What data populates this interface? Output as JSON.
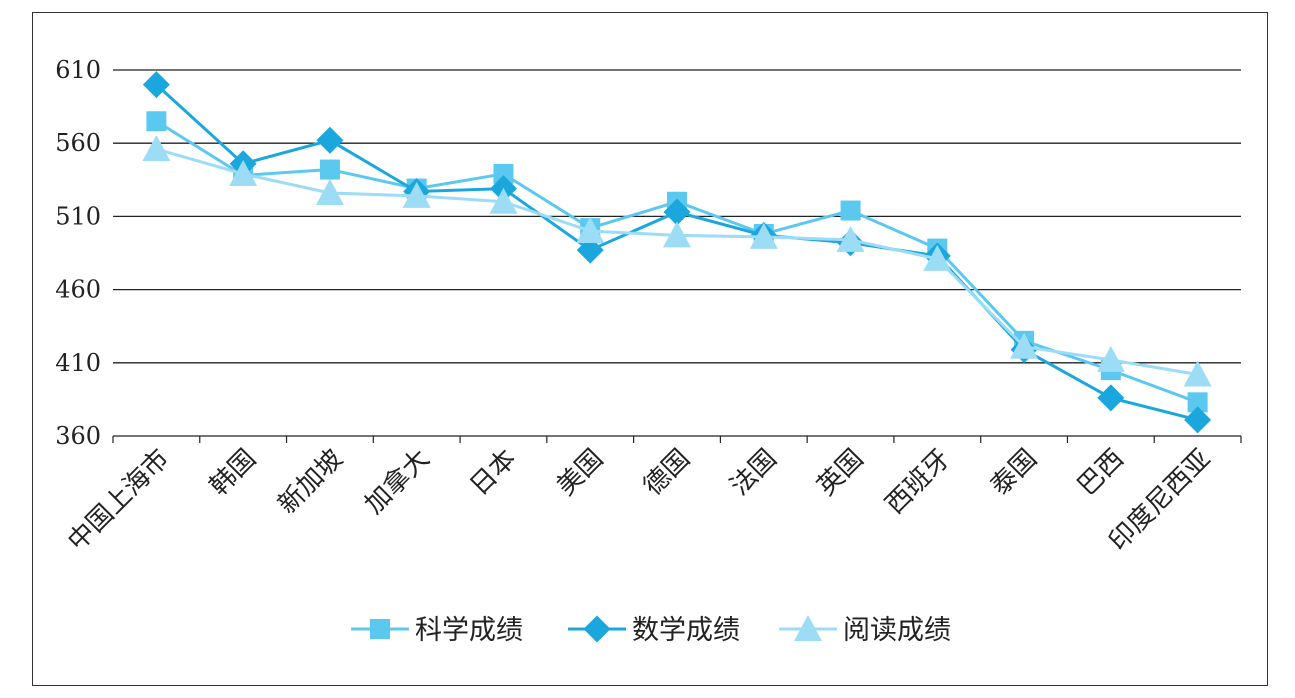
{
  "chart_data": {
    "type": "line",
    "categories": [
      "中国上海市",
      "韩国",
      "新加坡",
      "加拿大",
      "日本",
      "美国",
      "德国",
      "法国",
      "英国",
      "西班牙",
      "泰国",
      "巴西",
      "印度尼西亚"
    ],
    "series": [
      {
        "name": "科学成绩",
        "marker": "square",
        "color": "#5bc8f0",
        "values": [
          575,
          538,
          542,
          529,
          539,
          502,
          520,
          498,
          514,
          488,
          425,
          405,
          383
        ]
      },
      {
        "name": "数学成绩",
        "marker": "diamond",
        "color": "#1aa7de",
        "values": [
          600,
          546,
          562,
          527,
          529,
          487,
          513,
          497,
          492,
          483,
          419,
          386,
          371
        ]
      },
      {
        "name": "阅读成绩",
        "marker": "triangle",
        "color": "#9ddcf5",
        "values": [
          556,
          539,
          526,
          524,
          520,
          500,
          497,
          496,
          494,
          481,
          421,
          412,
          402
        ]
      }
    ],
    "y_ticks": [
      "610",
      "560",
      "510",
      "460",
      "410",
      "360"
    ],
    "ylim": [
      360,
      610
    ],
    "title": "",
    "xlabel": "",
    "ylabel": "",
    "grid": true,
    "legend": "bottom"
  }
}
